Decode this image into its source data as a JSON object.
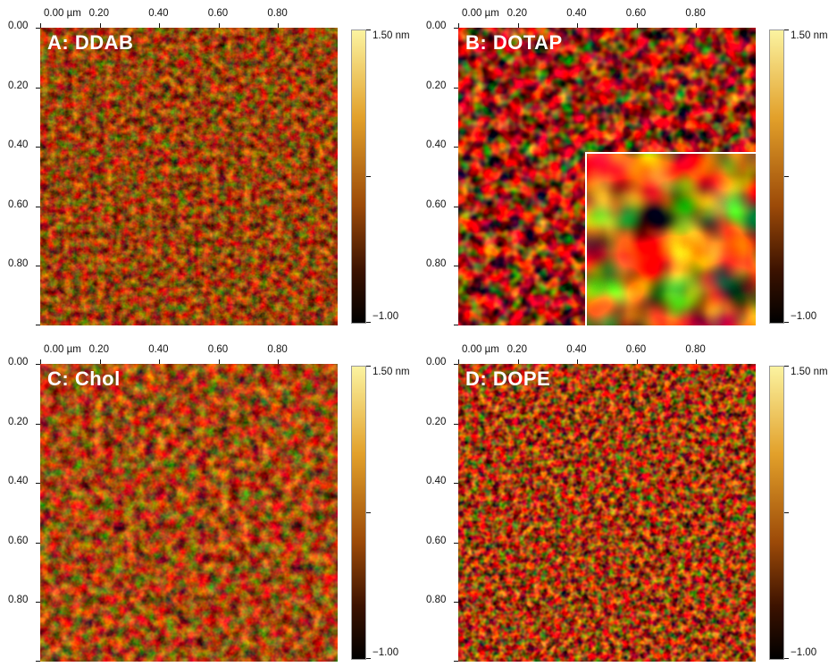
{
  "panels": [
    {
      "id": "A",
      "label": "A: DDAB",
      "x_ticks": [
        "0.00 µm",
        "0.20",
        "0.40",
        "0.60",
        "0.80"
      ],
      "y_ticks": [
        "0.00",
        "0.20",
        "0.40",
        "0.60",
        "0.80"
      ],
      "colorbar_max": "1.50 nm",
      "colorbar_min": "−1.00",
      "texture": "fine",
      "has_inset": false
    },
    {
      "id": "B",
      "label": "B: DOTAP",
      "x_ticks": [
        "0.00 µm",
        "0.20",
        "0.40",
        "0.60",
        "0.80"
      ],
      "y_ticks": [
        "0.00",
        "0.20",
        "0.40",
        "0.60",
        "0.80"
      ],
      "colorbar_max": "1.50 nm",
      "colorbar_min": "−1.00",
      "texture": "coarse-contrast",
      "has_inset": true
    },
    {
      "id": "C",
      "label": "C: Chol",
      "x_ticks": [
        "0.00 µm",
        "0.20",
        "0.40",
        "0.60",
        "0.80"
      ],
      "y_ticks": [
        "0.00",
        "0.20",
        "0.40",
        "0.60",
        "0.80"
      ],
      "colorbar_max": "1.50 nm",
      "colorbar_min": "−1.00",
      "texture": "medium",
      "has_inset": false
    },
    {
      "id": "D",
      "label": "D: DOPE",
      "x_ticks": [
        "0.00 µm",
        "0.20",
        "0.40",
        "0.60",
        "0.80"
      ],
      "y_ticks": [
        "0.00",
        "0.20",
        "0.40",
        "0.60",
        "0.80"
      ],
      "colorbar_max": "1.50 nm",
      "colorbar_min": "−1.00",
      "texture": "granular",
      "has_inset": false
    }
  ],
  "colors": {
    "colormap_top": "#fbf3a0",
    "colormap_upper": "#e2a02a",
    "colormap_mid": "#9c4a08",
    "colormap_low": "#3c1200",
    "colormap_bottom": "#000000"
  }
}
